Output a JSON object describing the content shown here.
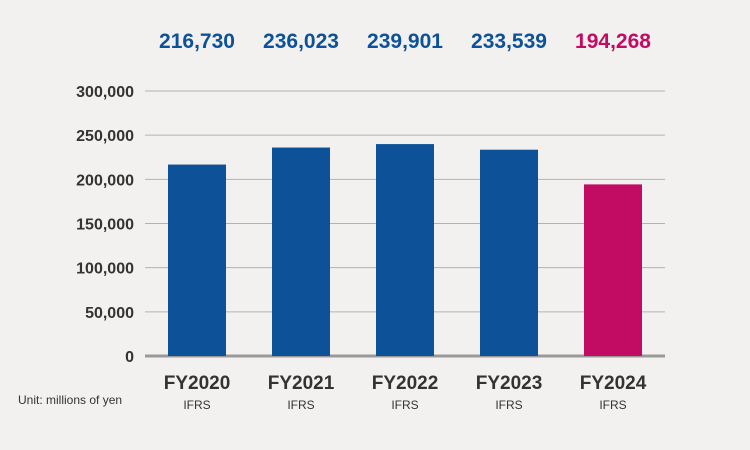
{
  "chart_data": {
    "type": "bar",
    "categories": [
      "FY2020",
      "FY2021",
      "FY2022",
      "FY2023",
      "FY2024"
    ],
    "category_sublabels": [
      "IFRS",
      "IFRS",
      "IFRS",
      "IFRS",
      "IFRS"
    ],
    "values": [
      216730,
      236023,
      239901,
      233539,
      194268
    ],
    "value_labels": [
      "216,730",
      "236,023",
      "239,901",
      "233,539",
      "194,268"
    ],
    "yticks": [
      0,
      50000,
      100000,
      150000,
      200000,
      250000,
      300000
    ],
    "ytick_labels": [
      "0",
      "50,000",
      "100,000",
      "150,000",
      "200,000",
      "250,000",
      "300,000"
    ],
    "ylim": [
      0,
      300000
    ],
    "unit_label": "Unit: millions of yen",
    "grid": true,
    "colors": {
      "default_bar": "#0d5299",
      "highlight_bar": "#c20c63",
      "default_label": "#0d5299",
      "highlight_label": "#c20c63",
      "gridline": "#b3b3b3",
      "baseline": "#999999"
    },
    "highlight_index": 4
  }
}
